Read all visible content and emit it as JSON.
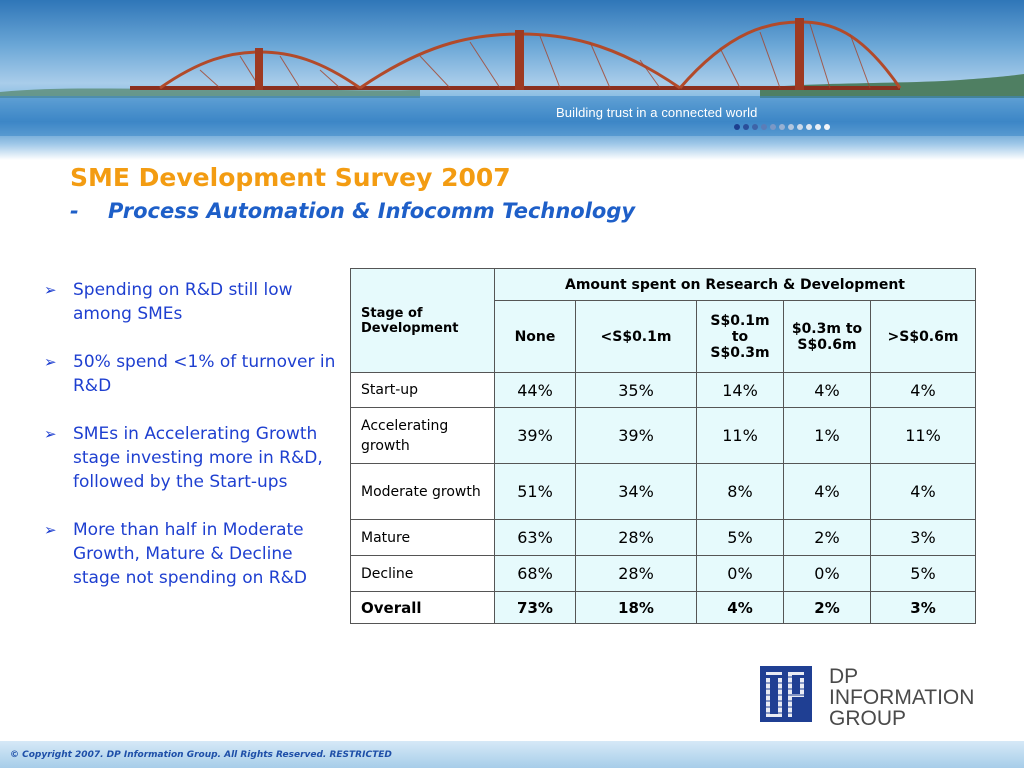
{
  "banner": {
    "tagline": "Building trust in a connected world",
    "dot_colors": [
      "#1d3f8f",
      "#2b4f9a",
      "#3e64a8",
      "#5a7db8",
      "#7a98c6",
      "#98b1d3",
      "#b3c7df",
      "#cbd9e9",
      "#dfe7f1",
      "#ebf0f6",
      "#f3f6fa"
    ]
  },
  "title": "SME Development Survey 2007",
  "subtitle": {
    "dash": "-",
    "text": "Process Automation & Infocomm Technology"
  },
  "bullets": [
    "Spending on R&D still low among SMEs",
    "50% spend <1% of turnover in R&D",
    "SMEs in Accelerating Growth stage investing more in R&D, followed by the Start-ups",
    "More than half in Moderate Growth, Mature & Decline stage not spending on R&D"
  ],
  "table": {
    "stage_header": "Stage of Development",
    "group_header": "Amount spent on Research & Development",
    "columns": [
      "None",
      "<S$0.1m",
      "S$0.1m to S$0.3m",
      "$0.3m to S$0.6m",
      ">S$0.6m"
    ],
    "rows": [
      {
        "label": "Start-up",
        "values": [
          "44%",
          "35%",
          "14%",
          "4%",
          "4%"
        ]
      },
      {
        "label": "Accelerating growth",
        "values": [
          "39%",
          "39%",
          "11%",
          "1%",
          "11%"
        ]
      },
      {
        "label": "Moderate growth",
        "values": [
          "51%",
          "34%",
          "8%",
          "4%",
          "4%"
        ]
      },
      {
        "label": "Mature",
        "values": [
          "63%",
          "28%",
          "5%",
          "2%",
          "3%"
        ]
      },
      {
        "label": "Decline",
        "values": [
          "68%",
          "28%",
          "0%",
          "0%",
          "5%"
        ]
      }
    ],
    "overall": {
      "label": "Overall",
      "values": [
        "73%",
        "18%",
        "4%",
        "2%",
        "3%"
      ]
    }
  },
  "logo": {
    "mark": "DP",
    "lines": [
      "DP",
      "INFORMATION",
      "GROUP"
    ],
    "color": "#1f3f93"
  },
  "footer": "© Copyright 2007. DP Information Group. All Rights Reserved. RESTRICTED"
}
